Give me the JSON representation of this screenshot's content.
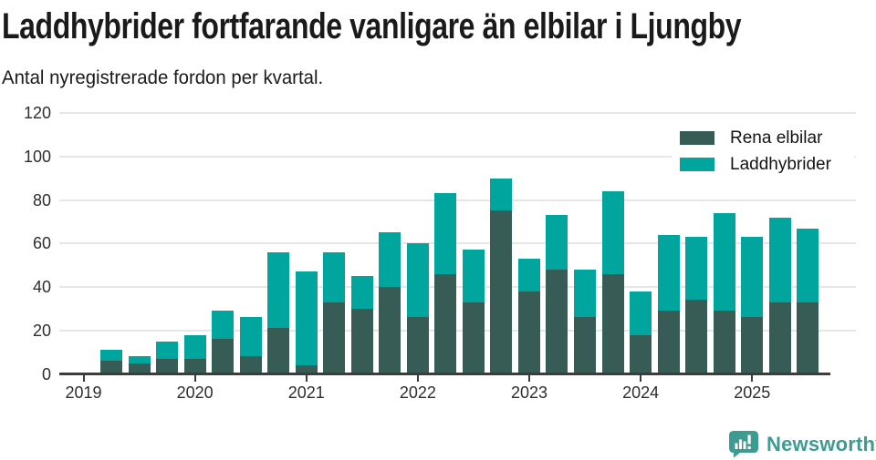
{
  "header": {
    "title": "Laddhybrider fortfarande vanligare än elbilar i Ljungby",
    "subtitle": "Antal nyregistrerade fordon per kvartal."
  },
  "colors": {
    "rena_elbilar": "#375b55",
    "laddhybrider": "#00a69d",
    "gridline": "#e6e6e6",
    "axis": "#3c3c3c",
    "tick_text": "#2d2d2d",
    "brand_teal": "#3d9c92"
  },
  "legend": {
    "items": [
      {
        "label": "Rena elbilar",
        "color_key": "rena_elbilar"
      },
      {
        "label": "Laddhybrider",
        "color_key": "laddhybrider"
      }
    ]
  },
  "footer": {
    "brand": "Newsworthy"
  },
  "chart_data": {
    "type": "bar",
    "stacked": true,
    "title": "Laddhybrider fortfarande vanligare än elbilar i Ljungby",
    "subtitle": "Antal nyregistrerade fordon per kvartal.",
    "ylim": [
      0,
      120
    ],
    "y_ticks": [
      0,
      20,
      40,
      60,
      80,
      100,
      120
    ],
    "x_tick_labels": [
      "2019",
      "2020",
      "2021",
      "2022",
      "2023",
      "2024",
      "2025"
    ],
    "grid": true,
    "legend_position": "top-right",
    "categories": [
      "2019 Q2",
      "2019 Q3",
      "2019 Q4",
      "2020 Q1",
      "2020 Q2",
      "2020 Q3",
      "2020 Q4",
      "2021 Q1",
      "2021 Q2",
      "2021 Q3",
      "2021 Q4",
      "2022 Q1",
      "2022 Q2",
      "2022 Q3",
      "2022 Q4",
      "2023 Q1",
      "2023 Q2",
      "2023 Q3",
      "2023 Q4",
      "2024 Q1",
      "2024 Q2",
      "2024 Q3",
      "2024 Q4",
      "2025 Q1",
      "2025 Q2",
      "2025 Q3"
    ],
    "series": [
      {
        "name": "Rena elbilar",
        "values": [
          6,
          5,
          7,
          7,
          16,
          8,
          21,
          4,
          33,
          30,
          40,
          26,
          46,
          33,
          75,
          38,
          48,
          26,
          46,
          18,
          29,
          34,
          29,
          26,
          33,
          33
        ]
      },
      {
        "name": "Laddhybrider",
        "values": [
          5,
          3,
          8,
          11,
          13,
          18,
          35,
          43,
          23,
          15,
          25,
          34,
          37,
          24,
          15,
          15,
          25,
          22,
          38,
          20,
          35,
          29,
          45,
          37,
          39,
          34
        ]
      }
    ],
    "totals": [
      11,
      8,
      15,
      18,
      29,
      26,
      56,
      47,
      56,
      45,
      65,
      60,
      83,
      57,
      90,
      53,
      73,
      48,
      84,
      38,
      64,
      63,
      74,
      63,
      72,
      67
    ]
  }
}
